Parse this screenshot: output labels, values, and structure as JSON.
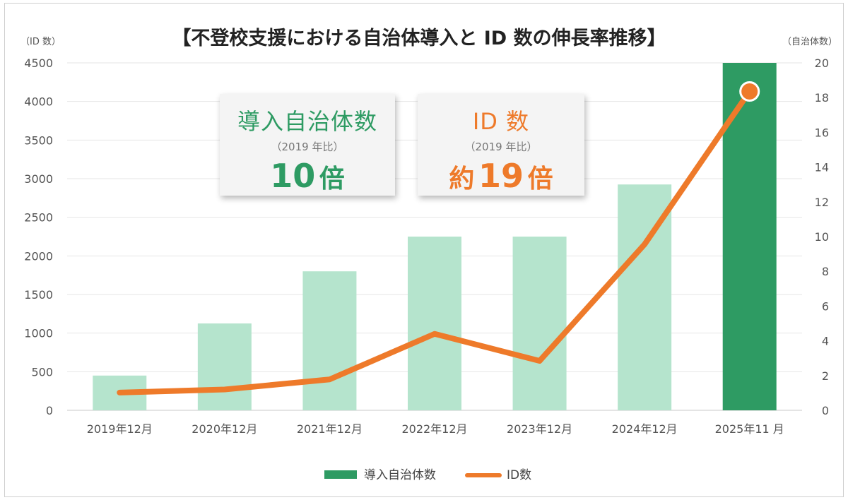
{
  "chart_data": {
    "type": "bar+line",
    "title": "【不登校支援における自治体導入と ID 数の伸長率推移】",
    "categories": [
      "2019年12月",
      "2020年12月",
      "2021年12月",
      "2022年12月",
      "2023年12月",
      "2024年12月",
      "2025年11 月"
    ],
    "series": [
      {
        "name": "導入自治体数",
        "type": "bar",
        "axis": "right",
        "values": [
          2,
          5,
          8,
          10,
          10,
          13,
          20
        ],
        "highlight_index": 6
      },
      {
        "name": "ID数",
        "type": "line",
        "axis": "left",
        "values": [
          230,
          270,
          400,
          990,
          640,
          2150,
          4130
        ]
      }
    ],
    "left_axis": {
      "label": "（ID 数）",
      "min": 0,
      "max": 4500,
      "ticks": [
        0,
        500,
        1000,
        1500,
        2000,
        2500,
        3000,
        3500,
        4000,
        4500
      ]
    },
    "right_axis": {
      "label": "（自治体数）",
      "min": 0,
      "max": 20,
      "ticks": [
        0,
        2,
        4,
        6,
        8,
        10,
        12,
        14,
        16,
        18,
        20
      ]
    },
    "legend": [
      "導入自治体数",
      "ID数"
    ],
    "legend_position": "bottom",
    "grid": true,
    "colors": {
      "bar_light": "#b5e4cd",
      "bar_highlight": "#2e9b63",
      "line": "#ee7a2a",
      "grid": "#e6e6e6",
      "text": "#555555"
    }
  },
  "callouts": [
    {
      "title": "導入自治体数",
      "note": "（2019 年比）",
      "prefix": "",
      "value": "10",
      "unit": "倍"
    },
    {
      "title": "ID 数",
      "note": "（2019 年比）",
      "prefix": "約",
      "value": "19",
      "unit": "倍"
    }
  ]
}
